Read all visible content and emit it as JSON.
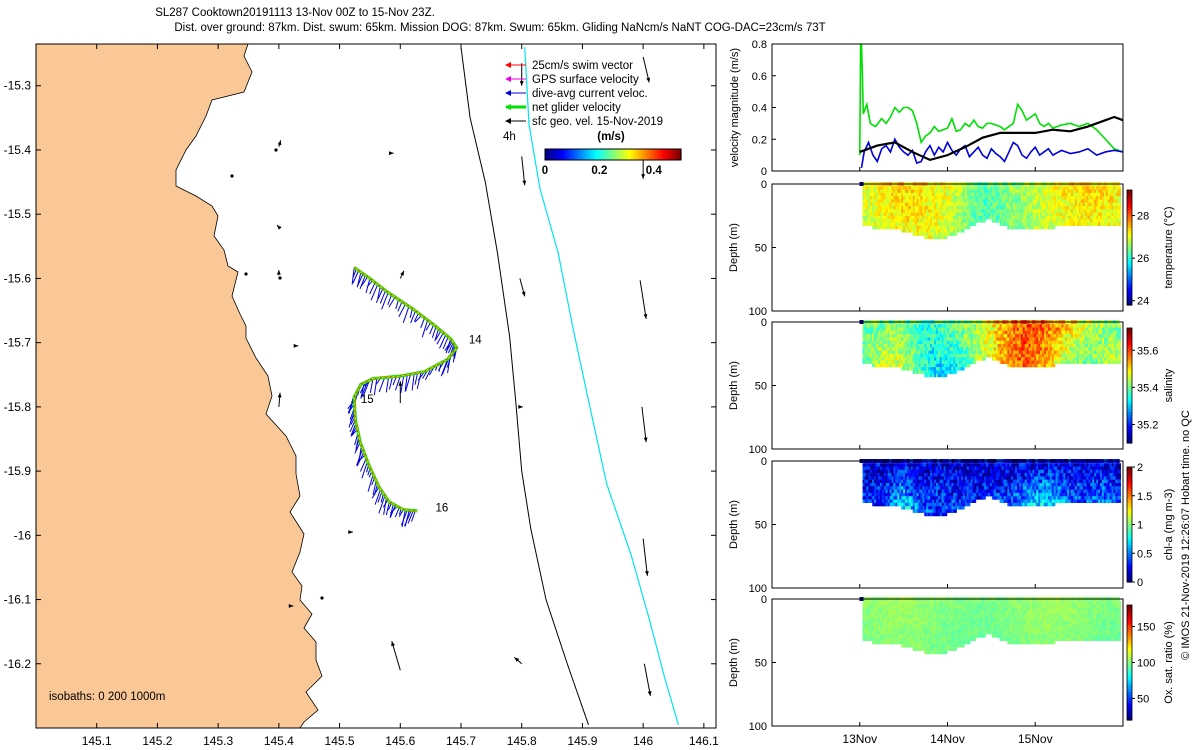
{
  "title": {
    "line1": "SL287 Cooktown20191113 13-Nov 00Z to 15-Nov 23Z.",
    "line2": "Dist. over ground: 87km. Dist. swum: 65km. Mission DOG: 87km. Swum: 65km. Gliding NaNcm/s NaNT COG-DAC=23cm/s 73T"
  },
  "colors": {
    "land": "#f9c896",
    "red": "#ff0000",
    "magenta": "#e600e6",
    "blue": "#0000dd",
    "green": "#00e000",
    "cyan": "#00e5ee",
    "black": "#000000"
  },
  "chart_data": [
    {
      "type": "map",
      "xlim": [
        145.0,
        146.12
      ],
      "ylim": [
        -16.3,
        -15.235
      ],
      "xticks": [
        145.1,
        145.2,
        145.3,
        145.4,
        145.5,
        145.6,
        145.7,
        145.8,
        145.9,
        146,
        146.1
      ],
      "xtick_labels": [
        "145.1",
        "145.2",
        "145.3",
        "145.4",
        "145.5",
        "145.6",
        "145.7",
        "145.8",
        "145.9",
        "146",
        "146.1"
      ],
      "yticks": [
        -15.3,
        -15.4,
        -15.5,
        -15.6,
        -15.7,
        -15.8,
        -15.9,
        -16.0,
        -16.1,
        -16.2
      ],
      "ytick_labels": [
        "-15.3",
        "-15.4",
        "-15.5",
        "-15.6",
        "-15.7",
        "-15.8",
        "-15.9",
        "-16",
        "-16.1",
        "-16.2"
      ],
      "legend": [
        {
          "label": "25cm/s swim vector",
          "color": "red"
        },
        {
          "label": "GPS surface velocity",
          "color": "magenta"
        },
        {
          "label": "dive-avg current veloc.",
          "color": "blue"
        },
        {
          "label": "net glider velocity",
          "color": "green"
        },
        {
          "label": "sfc geo. vel. 15-Nov-2019",
          "color": "black"
        }
      ],
      "scale_label": "4h",
      "colorbar": {
        "label": "(m/s)",
        "range": [
          0,
          0.5
        ],
        "ticks": [
          "0",
          "0.2",
          "0.4"
        ]
      },
      "isobaths_label": "isobaths: 0   200  1000m",
      "day_labels": [
        {
          "text": "14",
          "lon": 145.713,
          "lat": -15.695
        },
        {
          "text": "15",
          "lon": 145.535,
          "lat": -15.788
        },
        {
          "text": "16",
          "lon": 145.658,
          "lat": -15.957
        }
      ],
      "track": [
        [
          145.524,
          -15.583
        ],
        [
          145.55,
          -15.6
        ],
        [
          145.58,
          -15.622
        ],
        [
          145.62,
          -15.647
        ],
        [
          145.655,
          -15.672
        ],
        [
          145.683,
          -15.694
        ],
        [
          145.693,
          -15.708
        ],
        [
          145.678,
          -15.726
        ],
        [
          145.64,
          -15.745
        ],
        [
          145.6,
          -15.752
        ],
        [
          145.555,
          -15.756
        ],
        [
          145.535,
          -15.765
        ],
        [
          145.524,
          -15.785
        ],
        [
          145.526,
          -15.82
        ],
        [
          145.534,
          -15.855
        ],
        [
          145.548,
          -15.89
        ],
        [
          145.565,
          -15.925
        ],
        [
          145.582,
          -15.948
        ],
        [
          145.605,
          -15.96
        ],
        [
          145.628,
          -15.962
        ]
      ],
      "isobath_200": [
        [
          145.7,
          -15.24
        ],
        [
          145.715,
          -15.35
        ],
        [
          145.74,
          -15.45
        ],
        [
          145.76,
          -15.56
        ],
        [
          145.78,
          -15.69
        ],
        [
          145.79,
          -15.79
        ],
        [
          145.8,
          -15.9
        ],
        [
          145.815,
          -15.99
        ],
        [
          145.84,
          -16.1
        ],
        [
          145.875,
          -16.2
        ],
        [
          145.91,
          -16.295
        ]
      ],
      "isobath_1000": [
        [
          145.805,
          -15.24
        ],
        [
          145.812,
          -15.36
        ],
        [
          145.83,
          -15.46
        ],
        [
          145.86,
          -15.56
        ],
        [
          145.885,
          -15.68
        ],
        [
          145.91,
          -15.79
        ],
        [
          145.94,
          -15.92
        ],
        [
          145.98,
          -16.03
        ],
        [
          146.01,
          -16.13
        ],
        [
          146.035,
          -16.22
        ],
        [
          146.058,
          -16.295
        ]
      ],
      "current_arrows": [
        {
          "lon": 145.8,
          "lat": -15.265,
          "dlon": 0.0,
          "dlat": -0.035
        },
        {
          "lon": 146.0,
          "lat": -15.255,
          "dlon": 0.01,
          "dlat": -0.04
        },
        {
          "lon": 145.8,
          "lat": -15.41,
          "dlon": 0.005,
          "dlat": -0.045
        },
        {
          "lon": 146.0,
          "lat": -15.4,
          "dlon": 0.0,
          "dlat": -0.045
        },
        {
          "lon": 145.797,
          "lat": -15.6,
          "dlon": 0.008,
          "dlat": -0.028
        },
        {
          "lon": 145.995,
          "lat": -15.603,
          "dlon": 0.01,
          "dlat": -0.06
        },
        {
          "lon": 145.998,
          "lat": -15.8,
          "dlon": 0.007,
          "dlat": -0.055
        },
        {
          "lon": 146.0,
          "lat": -16.005,
          "dlon": 0.007,
          "dlat": -0.058
        },
        {
          "lon": 146.002,
          "lat": -16.2,
          "dlon": 0.01,
          "dlat": -0.05
        },
        {
          "lon": 145.6,
          "lat": -15.794,
          "dlon": 0.0,
          "dlat": 0.034
        },
        {
          "lon": 145.4,
          "lat": -15.8,
          "dlon": 0.002,
          "dlat": 0.022
        },
        {
          "lon": 145.6,
          "lat": -16.21,
          "dlon": -0.014,
          "dlat": 0.045
        },
        {
          "lon": 145.8,
          "lat": -16.2,
          "dlon": -0.012,
          "dlat": 0.01
        },
        {
          "lon": 145.6,
          "lat": -15.6,
          "dlon": 0.006,
          "dlat": 0.012
        },
        {
          "lon": 145.4,
          "lat": -15.595,
          "dlon": 0.0,
          "dlat": 0.008
        },
        {
          "lon": 145.4,
          "lat": -15.395,
          "dlon": 0.003,
          "dlat": 0.01
        },
        {
          "lon": 145.4,
          "lat": -15.52,
          "dlon": -0.003,
          "dlat": 0.003
        },
        {
          "lon": 145.585,
          "lat": -15.405,
          "dlon": 0.004,
          "dlat": 0.0
        },
        {
          "lon": 145.42,
          "lat": -16.11,
          "dlon": 0.004,
          "dlat": 0.0
        },
        {
          "lon": 145.8,
          "lat": -15.8,
          "dlon": 0.002,
          "dlat": 0.0
        },
        {
          "lon": 145.518,
          "lat": -15.995,
          "dlon": 0.004,
          "dlat": 0.0
        },
        {
          "lon": 145.428,
          "lat": -15.705,
          "dlon": 0.004,
          "dlat": 0.0
        }
      ]
    },
    {
      "type": "line",
      "ylabel": "velocity magnitude (m/s)",
      "xlim": [
        12.0,
        16.0
      ],
      "ylim": [
        0,
        0.8
      ],
      "yticks": [
        "0",
        "0.2",
        "0.4",
        "0.6",
        "0.8"
      ],
      "series": [
        {
          "name": "net glider velocity",
          "color": "green",
          "x": [
            13.0,
            13.01,
            13.02,
            13.03,
            13.04,
            13.08,
            13.12,
            13.18,
            13.25,
            13.3,
            13.35,
            13.4,
            13.45,
            13.5,
            13.55,
            13.6,
            13.65,
            13.7,
            13.75,
            13.8,
            13.85,
            13.9,
            13.95,
            14.0,
            14.05,
            14.1,
            14.15,
            14.2,
            14.25,
            14.3,
            14.35,
            14.4,
            14.45,
            14.5,
            14.55,
            14.6,
            14.65,
            14.7,
            14.75,
            14.8,
            14.85,
            14.9,
            14.95,
            15.0,
            15.05,
            15.1,
            15.15,
            15.2,
            15.3,
            15.4,
            15.5,
            15.6,
            15.7,
            15.8,
            15.9,
            16.0
          ],
          "y": [
            0.1,
            0.8,
            0.8,
            0.6,
            0.36,
            0.42,
            0.3,
            0.28,
            0.33,
            0.3,
            0.34,
            0.4,
            0.37,
            0.4,
            0.4,
            0.38,
            0.3,
            0.18,
            0.22,
            0.24,
            0.28,
            0.25,
            0.26,
            0.27,
            0.33,
            0.25,
            0.26,
            0.3,
            0.28,
            0.32,
            0.28,
            0.27,
            0.3,
            0.3,
            0.29,
            0.28,
            0.26,
            0.28,
            0.3,
            0.42,
            0.38,
            0.32,
            0.34,
            0.36,
            0.3,
            0.28,
            0.3,
            0.27,
            0.29,
            0.3,
            0.28,
            0.3,
            0.26,
            0.2,
            0.14,
            0.12
          ]
        },
        {
          "name": "dive-avg current veloc.",
          "color": "blue",
          "x": [
            13.02,
            13.05,
            13.1,
            13.15,
            13.2,
            13.25,
            13.3,
            13.35,
            13.4,
            13.45,
            13.5,
            13.55,
            13.6,
            13.65,
            13.7,
            13.75,
            13.8,
            13.85,
            13.9,
            13.95,
            14.0,
            14.05,
            14.1,
            14.15,
            14.2,
            14.25,
            14.3,
            14.35,
            14.4,
            14.45,
            14.5,
            14.55,
            14.6,
            14.65,
            14.7,
            14.75,
            14.8,
            14.85,
            14.9,
            14.95,
            15.0,
            15.05,
            15.1,
            15.15,
            15.2,
            15.3,
            15.4,
            15.5,
            15.6,
            15.7,
            15.8,
            15.9,
            16.0
          ],
          "y": [
            0.02,
            0.12,
            0.18,
            0.1,
            0.06,
            0.14,
            0.16,
            0.12,
            0.2,
            0.15,
            0.12,
            0.1,
            0.13,
            0.05,
            0.06,
            0.12,
            0.16,
            0.1,
            0.15,
            0.12,
            0.18,
            0.13,
            0.1,
            0.14,
            0.16,
            0.09,
            0.12,
            0.15,
            0.1,
            0.08,
            0.14,
            0.11,
            0.09,
            0.06,
            0.12,
            0.18,
            0.16,
            0.1,
            0.08,
            0.12,
            0.15,
            0.1,
            0.12,
            0.14,
            0.1,
            0.13,
            0.11,
            0.12,
            0.14,
            0.1,
            0.12,
            0.13,
            0.12
          ]
        },
        {
          "name": "sfc geo. vel.",
          "color": "black",
          "x": [
            13.0,
            13.2,
            13.4,
            13.6,
            13.8,
            14.0,
            14.2,
            14.4,
            14.6,
            14.8,
            15.0,
            15.2,
            15.4,
            15.6,
            15.8,
            15.9,
            16.0
          ],
          "y": [
            0.12,
            0.16,
            0.18,
            0.12,
            0.07,
            0.1,
            0.15,
            0.21,
            0.24,
            0.24,
            0.24,
            0.26,
            0.25,
            0.28,
            0.32,
            0.34,
            0.32
          ]
        }
      ]
    },
    {
      "type": "heatmap",
      "ylabel": "Depth (m)",
      "cbar_label": "temperature (°C)",
      "cbar_ticks": [
        "24",
        "26",
        "28"
      ],
      "yticks": [
        "0",
        "50",
        "100"
      ],
      "ylim": [
        0,
        100
      ],
      "crange": [
        23.8,
        29.2
      ],
      "base": 26.6,
      "noise": 0.4
    },
    {
      "type": "heatmap",
      "ylabel": "Depth (m)",
      "cbar_label": "salinity",
      "cbar_ticks": [
        "35.2",
        "35.4",
        "35.6"
      ],
      "yticks": [
        "0",
        "50",
        "100"
      ],
      "ylim": [
        0,
        100
      ],
      "crange": [
        35.1,
        35.72
      ],
      "base": 35.48,
      "noise": 0.06
    },
    {
      "type": "heatmap",
      "ylabel": "Depth (m)",
      "cbar_label": "chl-a (mg m-3)",
      "cbar_ticks": [
        "0",
        "0.5",
        "1",
        "1.5",
        "2"
      ],
      "yticks": [
        "0",
        "50",
        "100"
      ],
      "ylim": [
        0,
        100
      ],
      "crange": [
        0,
        2
      ],
      "base": 0.3,
      "noise": 0.25
    },
    {
      "type": "heatmap",
      "ylabel": "Depth (m)",
      "cbar_label": "Ox. sat. ratio (%)",
      "cbar_ticks": [
        "50",
        "100",
        "150"
      ],
      "yticks": [
        "0",
        "50",
        "100"
      ],
      "ylim": [
        0,
        100
      ],
      "crange": [
        20,
        180
      ],
      "base": 102,
      "noise": 5
    }
  ],
  "time_axis": {
    "ticks": [
      {
        "pos": 13,
        "label": "13Nov"
      },
      {
        "pos": 14,
        "label": "14Nov"
      },
      {
        "pos": 15,
        "label": "15Nov"
      }
    ]
  },
  "footer": "© IMOS 21-Nov-2019 12:26:07 Hobart time. no QC"
}
